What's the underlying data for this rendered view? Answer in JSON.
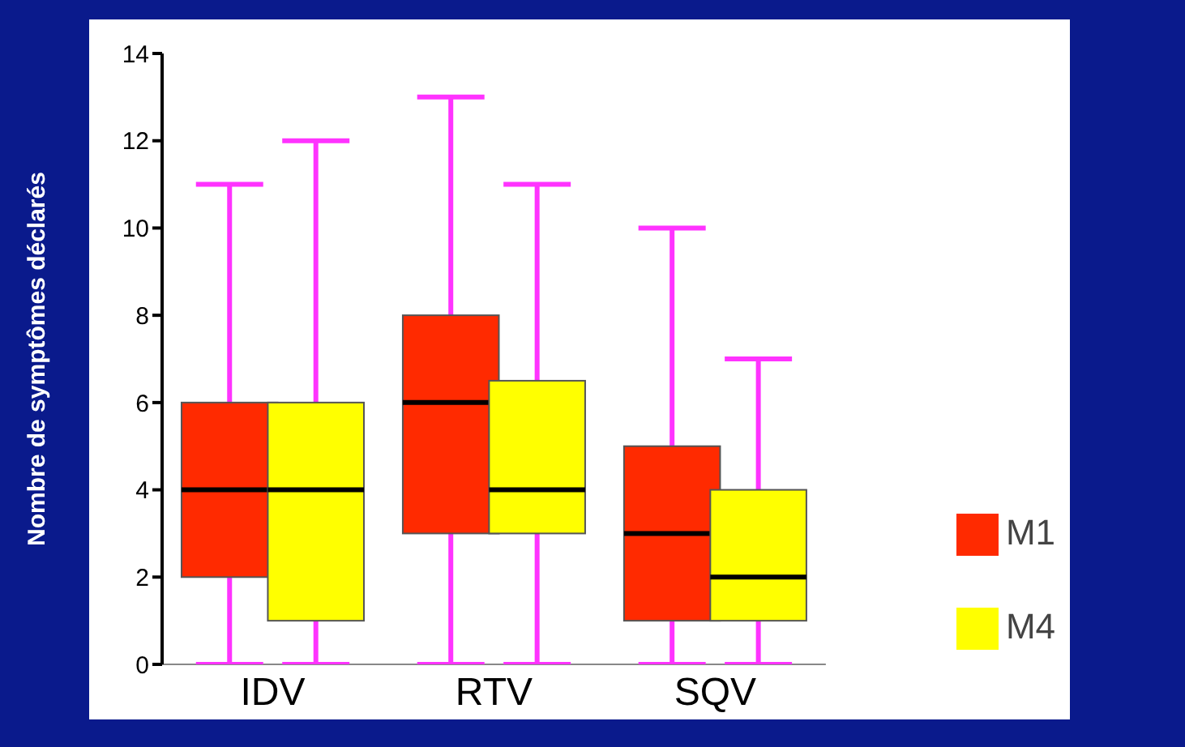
{
  "chart_data": {
    "type": "box",
    "ylabel": "Nombre de symptômes déclarés",
    "categories": [
      "IDV",
      "RTV",
      "SQV"
    ],
    "ylim": [
      0,
      14
    ],
    "yticks": [
      0,
      2,
      4,
      6,
      8,
      10,
      12,
      14
    ],
    "legend": "right",
    "grid": false,
    "series": [
      {
        "name": "M1",
        "color": "#ff2a00",
        "boxes": [
          {
            "low": 0,
            "q1": 2,
            "median": 4,
            "q3": 6,
            "high": 11
          },
          {
            "low": 0,
            "q1": 3,
            "median": 6,
            "q3": 8,
            "high": 13
          },
          {
            "low": 0,
            "q1": 1,
            "median": 3,
            "q3": 5,
            "high": 10
          }
        ]
      },
      {
        "name": "M4",
        "color": "#ffff00",
        "boxes": [
          {
            "low": 0,
            "q1": 1,
            "median": 4,
            "q3": 6,
            "high": 12
          },
          {
            "low": 0,
            "q1": 3,
            "median": 4,
            "q3": 6.5,
            "high": 11
          },
          {
            "low": 0,
            "q1": 1,
            "median": 2,
            "q3": 4,
            "high": 7
          }
        ]
      }
    ]
  }
}
